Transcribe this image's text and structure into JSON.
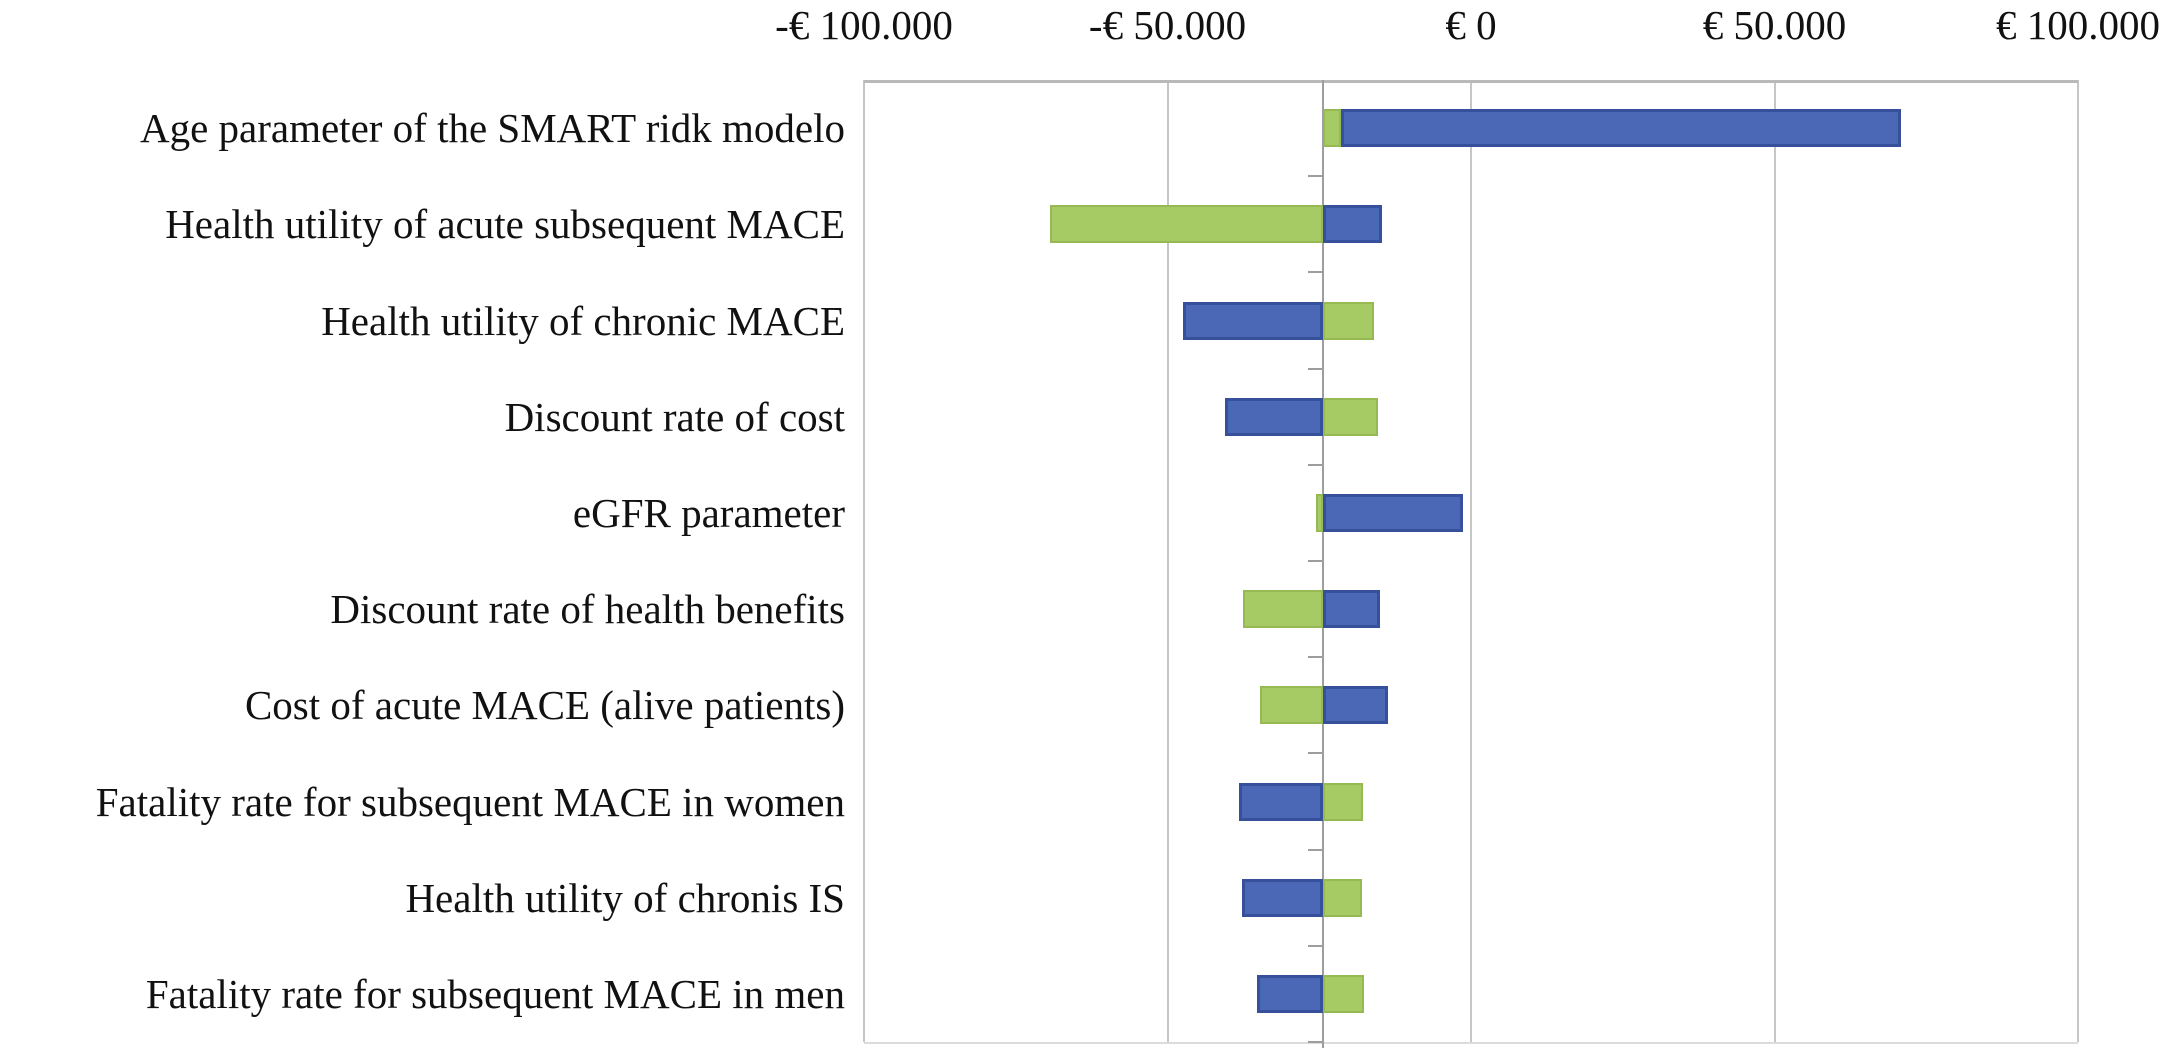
{
  "figure": {
    "background_color": "#ffffff",
    "text_color": "#111111",
    "grid_color": "#c6c6c6",
    "axis_color": "#9e9e9e"
  },
  "chart_data": {
    "type": "bar",
    "subtype": "tornado-diagram",
    "orientation": "horizontal",
    "title": "",
    "xlabel": "",
    "ylabel": "",
    "legend": "none",
    "grid": true,
    "x_axis": {
      "position": "top",
      "min": -100000,
      "max": 100000,
      "tick_values": [
        -100000,
        -50000,
        0,
        50000,
        100000
      ],
      "tick_labels": [
        "-€ 100.000",
        "-€ 50.000",
        "€ 0",
        "€ 50.000",
        "€ 100.000"
      ]
    },
    "base_value": -24400,
    "series_colors": {
      "blue": "#4a68b6",
      "green": "#a6ca64"
    },
    "series_border_colors": {
      "blue": "#36509c",
      "green": "#97b954"
    },
    "rows": [
      {
        "label": "Age parameter of the SMART ridk modelo",
        "segments": [
          {
            "color": "green",
            "from": -24400,
            "to": -21450
          },
          {
            "color": "blue",
            "from": -21450,
            "to": 70800
          }
        ]
      },
      {
        "label": "Health utility of acute subsequent MACE",
        "segments": [
          {
            "color": "green",
            "from": -69300,
            "to": -24400
          },
          {
            "color": "blue",
            "from": -24400,
            "to": -14700
          }
        ]
      },
      {
        "label": "Health utility of chronic MACE",
        "segments": [
          {
            "color": "blue",
            "from": -47500,
            "to": -24400
          },
          {
            "color": "green",
            "from": -24400,
            "to": -16000
          }
        ]
      },
      {
        "label": "Discount rate of cost",
        "segments": [
          {
            "color": "blue",
            "from": -40600,
            "to": -24400
          },
          {
            "color": "green",
            "from": -24400,
            "to": -15300
          }
        ]
      },
      {
        "label": "eGFR parameter",
        "segments": [
          {
            "color": "green",
            "from": -25600,
            "to": -24400
          },
          {
            "color": "blue",
            "from": -24400,
            "to": -1300
          }
        ]
      },
      {
        "label": "Discount rate of health benefits",
        "segments": [
          {
            "color": "green",
            "from": -37500,
            "to": -24400
          },
          {
            "color": "blue",
            "from": -24400,
            "to": -15000
          }
        ]
      },
      {
        "label": "Cost of acute MACE (alive patients)",
        "segments": [
          {
            "color": "green",
            "from": -34800,
            "to": -24400
          },
          {
            "color": "blue",
            "from": -24400,
            "to": -13700
          }
        ]
      },
      {
        "label": "Fatality rate for subsequent MACE in women",
        "segments": [
          {
            "color": "blue",
            "from": -38300,
            "to": -24400
          },
          {
            "color": "green",
            "from": -24400,
            "to": -17800
          }
        ]
      },
      {
        "label": "Health utility of chronis IS",
        "segments": [
          {
            "color": "blue",
            "from": -37800,
            "to": -24400
          },
          {
            "color": "green",
            "from": -24400,
            "to": -18000
          }
        ]
      },
      {
        "label": "Fatality rate for subsequent MACE in men",
        "segments": [
          {
            "color": "blue",
            "from": -35300,
            "to": -24400
          },
          {
            "color": "green",
            "from": -24400,
            "to": -17700
          }
        ]
      }
    ]
  }
}
